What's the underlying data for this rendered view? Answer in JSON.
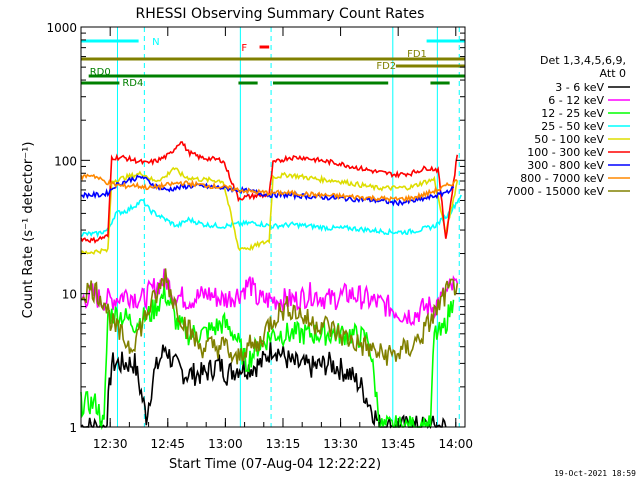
{
  "chart_data": {
    "type": "line",
    "title": "RHESSI Observing Summary Count Rates",
    "xlabel": "Start Time (07-Aug-04 12:22:22)",
    "ylabel": "Count Rate (s⁻¹ detector⁻¹)",
    "y_scale": "log",
    "ylim": [
      1,
      1000
    ],
    "y_ticks": [
      {
        "v": 1,
        "label": "1"
      },
      {
        "v": 10,
        "label": "10"
      },
      {
        "v": 100,
        "label": "100"
      },
      {
        "v": 1000,
        "label": "1000"
      }
    ],
    "xlim": [
      0,
      100
    ],
    "x_ticks": [
      {
        "m": 7.6,
        "label": "12:30"
      },
      {
        "m": 22.6,
        "label": "12:45"
      },
      {
        "m": 37.6,
        "label": "13:00"
      },
      {
        "m": 52.6,
        "label": "13:15"
      },
      {
        "m": 67.6,
        "label": "13:30"
      },
      {
        "m": 82.6,
        "label": "13:45"
      },
      {
        "m": 97.6,
        "label": "14:00"
      }
    ],
    "timestamp": "19-Oct-2021 18:59",
    "legend": {
      "position": "right",
      "header": [
        "Det 1,3,4,5,6,9,",
        "Att 0"
      ],
      "entries": [
        {
          "label": "3 - 6 keV",
          "color": "#000000"
        },
        {
          "label": "6 - 12 keV",
          "color": "#ff00ff"
        },
        {
          "label": "12 - 25 keV",
          "color": "#00ff00"
        },
        {
          "label": "25 - 50 keV",
          "color": "#00ffff"
        },
        {
          "label": "50 - 100 keV",
          "color": "#dddd00"
        },
        {
          "label": "100 - 300 keV",
          "color": "#ff0000"
        },
        {
          "label": "300 - 800 keV",
          "color": "#0000ff"
        },
        {
          "label": "800 - 7000 keV",
          "color": "#ff8800"
        },
        {
          "label": "7000 - 15000 keV",
          "color": "#808000"
        }
      ]
    },
    "series": [
      {
        "name": "3 - 6 keV",
        "color": "#000000",
        "points": [
          [
            0,
            1
          ],
          [
            6.5,
            1
          ],
          [
            8,
            3
          ],
          [
            14,
            3
          ],
          [
            17,
            1.2
          ],
          [
            19,
            2.5
          ],
          [
            22,
            4
          ],
          [
            24,
            3
          ],
          [
            27,
            2.5
          ],
          [
            32,
            2.5
          ],
          [
            36,
            3
          ],
          [
            38,
            2.5
          ],
          [
            41,
            2.8
          ],
          [
            44,
            2.8
          ],
          [
            47,
            3
          ],
          [
            50,
            4
          ],
          [
            55,
            3
          ],
          [
            60,
            2.8
          ],
          [
            65,
            3
          ],
          [
            70,
            2.5
          ],
          [
            73,
            2
          ],
          [
            78,
            1
          ],
          [
            91,
            1
          ],
          [
            95,
            1
          ]
        ]
      },
      {
        "name": "6 - 12 keV",
        "color": "#ff00ff",
        "points": [
          [
            0,
            9
          ],
          [
            3,
            10
          ],
          [
            5,
            9
          ],
          [
            8,
            9
          ],
          [
            12,
            10
          ],
          [
            16,
            9
          ],
          [
            19,
            11
          ],
          [
            22,
            13
          ],
          [
            24,
            10
          ],
          [
            28,
            9
          ],
          [
            33,
            10
          ],
          [
            37,
            9
          ],
          [
            41,
            10
          ],
          [
            44,
            12
          ],
          [
            46,
            9
          ],
          [
            50,
            9
          ],
          [
            56,
            9
          ],
          [
            60,
            10
          ],
          [
            65,
            9
          ],
          [
            70,
            10
          ],
          [
            75,
            9
          ],
          [
            80,
            8
          ],
          [
            84,
            7
          ],
          [
            87,
            7
          ],
          [
            90,
            8
          ],
          [
            92,
            8
          ],
          [
            95,
            10
          ],
          [
            98,
            12
          ]
        ]
      },
      {
        "name": "12 - 25 keV",
        "color": "#00ff00",
        "points": [
          [
            0,
            1.5
          ],
          [
            4,
            1.5
          ],
          [
            6,
            1
          ],
          [
            7,
            7
          ],
          [
            10,
            7
          ],
          [
            14,
            6
          ],
          [
            18,
            7
          ],
          [
            22,
            10
          ],
          [
            25,
            6
          ],
          [
            28,
            5
          ],
          [
            32,
            5
          ],
          [
            37,
            6
          ],
          [
            40,
            5
          ],
          [
            43,
            3
          ],
          [
            46,
            4
          ],
          [
            50,
            5
          ],
          [
            55,
            5
          ],
          [
            60,
            5
          ],
          [
            65,
            5
          ],
          [
            70,
            5
          ],
          [
            75,
            4.5
          ],
          [
            78,
            1
          ],
          [
            91,
            1
          ],
          [
            92,
            5
          ],
          [
            94,
            5
          ],
          [
            97,
            9
          ]
        ]
      },
      {
        "name": "25 - 50 keV",
        "color": "#00ffff",
        "points": [
          [
            0,
            28
          ],
          [
            4,
            28
          ],
          [
            7,
            30
          ],
          [
            9,
            40
          ],
          [
            12,
            42
          ],
          [
            16,
            50
          ],
          [
            18,
            42
          ],
          [
            22,
            36
          ],
          [
            25,
            32
          ],
          [
            28,
            36
          ],
          [
            32,
            33
          ],
          [
            37,
            32
          ],
          [
            40,
            33
          ],
          [
            45,
            34
          ],
          [
            50,
            32
          ],
          [
            55,
            33
          ],
          [
            60,
            32
          ],
          [
            65,
            31
          ],
          [
            70,
            31
          ],
          [
            75,
            30
          ],
          [
            80,
            29
          ],
          [
            85,
            29
          ],
          [
            88,
            30
          ],
          [
            92,
            32
          ],
          [
            96,
            40
          ],
          [
            99,
            55
          ]
        ]
      },
      {
        "name": "50 - 100 keV",
        "color": "#dddd00",
        "points": [
          [
            0,
            20
          ],
          [
            5,
            21
          ],
          [
            7,
            21
          ],
          [
            8,
            70
          ],
          [
            12,
            75
          ],
          [
            16,
            80
          ],
          [
            19,
            70
          ],
          [
            22,
            75
          ],
          [
            24,
            88
          ],
          [
            27,
            75
          ],
          [
            31,
            72
          ],
          [
            37,
            70
          ],
          [
            41,
            22
          ],
          [
            44,
            22
          ],
          [
            49,
            25
          ],
          [
            50,
            75
          ],
          [
            54,
            78
          ],
          [
            58,
            75
          ],
          [
            62,
            72
          ],
          [
            67,
            70
          ],
          [
            72,
            66
          ],
          [
            77,
            62
          ],
          [
            82,
            62
          ],
          [
            86,
            63
          ],
          [
            89,
            68
          ],
          [
            92,
            72
          ],
          [
            95,
            28
          ],
          [
            98,
            70
          ]
        ]
      },
      {
        "name": "100 - 300 keV",
        "color": "#ff0000",
        "points": [
          [
            0,
            26
          ],
          [
            3,
            25
          ],
          [
            7,
            27
          ],
          [
            8,
            105
          ],
          [
            11,
            105
          ],
          [
            14,
            100
          ],
          [
            17,
            95
          ],
          [
            20,
            100
          ],
          [
            23,
            110
          ],
          [
            26,
            140
          ],
          [
            28,
            115
          ],
          [
            31,
            105
          ],
          [
            37,
            100
          ],
          [
            41,
            52
          ],
          [
            45,
            54
          ],
          [
            49,
            55
          ],
          [
            50,
            95
          ],
          [
            54,
            105
          ],
          [
            58,
            105
          ],
          [
            62,
            100
          ],
          [
            67,
            95
          ],
          [
            72,
            88
          ],
          [
            77,
            82
          ],
          [
            82,
            78
          ],
          [
            86,
            80
          ],
          [
            90,
            88
          ],
          [
            93,
            85
          ],
          [
            95,
            26
          ],
          [
            98,
            110
          ]
        ]
      },
      {
        "name": "300 - 800 keV",
        "color": "#0000ff",
        "points": [
          [
            0,
            55
          ],
          [
            5,
            55
          ],
          [
            7,
            57
          ],
          [
            9,
            65
          ],
          [
            13,
            72
          ],
          [
            16,
            75
          ],
          [
            19,
            65
          ],
          [
            22,
            60
          ],
          [
            25,
            62
          ],
          [
            28,
            64
          ],
          [
            32,
            64
          ],
          [
            37,
            62
          ],
          [
            41,
            60
          ],
          [
            45,
            58
          ],
          [
            49,
            55
          ],
          [
            53,
            55
          ],
          [
            58,
            54
          ],
          [
            62,
            53
          ],
          [
            67,
            52
          ],
          [
            72,
            51
          ],
          [
            77,
            50
          ],
          [
            82,
            48
          ],
          [
            86,
            49
          ],
          [
            90,
            52
          ],
          [
            94,
            56
          ],
          [
            97,
            62
          ]
        ]
      },
      {
        "name": "800 - 7000 keV",
        "color": "#ff8800",
        "points": [
          [
            0,
            75
          ],
          [
            3,
            78
          ],
          [
            5,
            72
          ],
          [
            8,
            66
          ],
          [
            11,
            64
          ],
          [
            14,
            65
          ],
          [
            18,
            62
          ],
          [
            22,
            65
          ],
          [
            26,
            68
          ],
          [
            30,
            66
          ],
          [
            34,
            64
          ],
          [
            37,
            63
          ],
          [
            41,
            60
          ],
          [
            45,
            58
          ],
          [
            49,
            57
          ],
          [
            53,
            57
          ],
          [
            58,
            56
          ],
          [
            62,
            55
          ],
          [
            67,
            54
          ],
          [
            72,
            53
          ],
          [
            77,
            52
          ],
          [
            82,
            51
          ],
          [
            86,
            52
          ],
          [
            90,
            56
          ],
          [
            94,
            62
          ],
          [
            98,
            70
          ]
        ]
      },
      {
        "name": "7000 - 15000 keV",
        "color": "#808000",
        "points": [
          [
            0,
            10
          ],
          [
            3,
            11
          ],
          [
            6,
            9
          ],
          [
            8,
            6
          ],
          [
            10,
            5
          ],
          [
            13,
            4
          ],
          [
            16,
            6
          ],
          [
            18,
            8
          ],
          [
            20,
            10
          ],
          [
            22,
            14
          ],
          [
            24,
            9
          ],
          [
            27,
            6
          ],
          [
            31,
            4
          ],
          [
            35,
            4
          ],
          [
            38,
            4
          ],
          [
            40,
            3
          ],
          [
            43,
            4
          ],
          [
            46,
            4
          ],
          [
            49,
            6
          ],
          [
            51,
            7
          ],
          [
            54,
            8
          ],
          [
            57,
            7
          ],
          [
            60,
            6
          ],
          [
            63,
            6
          ],
          [
            67,
            5
          ],
          [
            70,
            4.5
          ],
          [
            74,
            4
          ],
          [
            78,
            3.5
          ],
          [
            82,
            3.5
          ],
          [
            86,
            4
          ],
          [
            89,
            5
          ],
          [
            92,
            7
          ],
          [
            95,
            10
          ],
          [
            98,
            12
          ]
        ]
      }
    ],
    "flag_bars": [
      {
        "label": "N",
        "color": "#00ffff",
        "segments": [
          [
            0,
            15
          ],
          [
            90,
            100
          ]
        ]
      },
      {
        "label": "F",
        "color": "#ff0000",
        "segments": [
          [
            46.5,
            49
          ]
        ]
      },
      {
        "label": "FD1",
        "color": "#808000",
        "segments": [
          [
            0,
            100
          ]
        ]
      },
      {
        "label": "FD2",
        "color": "#808000",
        "segments": [
          [
            82,
            100
          ]
        ]
      },
      {
        "label": "RD0",
        "color": "#008000",
        "segments": [
          [
            2,
            100
          ]
        ]
      },
      {
        "label": "RD4",
        "color": "#008000",
        "segments": [
          [
            0,
            10
          ],
          [
            41,
            46
          ],
          [
            50,
            80
          ],
          [
            91,
            96
          ]
        ]
      }
    ],
    "vertical_lines": [
      {
        "m": 9.5,
        "style": "solid"
      },
      {
        "m": 16.5,
        "style": "dashed"
      },
      {
        "m": 41.5,
        "style": "solid"
      },
      {
        "m": 49.5,
        "style": "dashed"
      },
      {
        "m": 81.2,
        "style": "solid"
      },
      {
        "m": 92.8,
        "style": "solid"
      },
      {
        "m": 98.5,
        "style": "dashed"
      }
    ]
  }
}
